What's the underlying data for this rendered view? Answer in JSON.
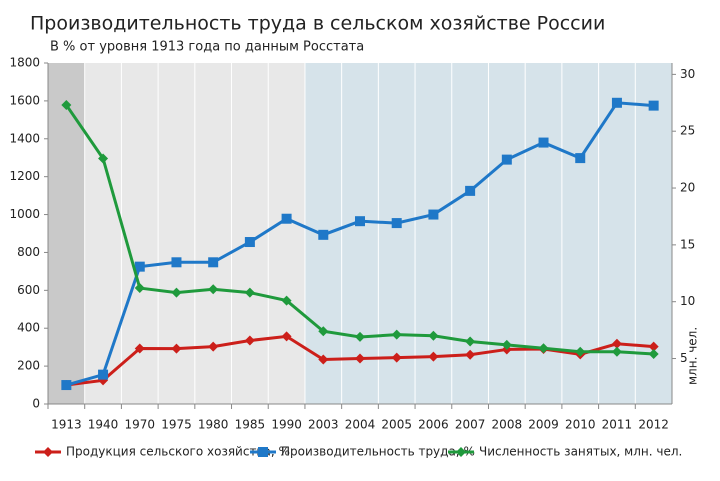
{
  "chart_data": {
    "type": "line",
    "title": "Производительность труда в сельском хозяйстве России",
    "subtitle": "В % от уровня 1913 года по данным Росстата",
    "y2label": "млн. чел.",
    "categories": [
      "1913",
      "1940",
      "1970",
      "1975",
      "1980",
      "1985",
      "1990",
      "2003",
      "2004",
      "2005",
      "2006",
      "2007",
      "2008",
      "2009",
      "2010",
      "2011",
      "2012"
    ],
    "ylim": [
      0,
      1800
    ],
    "yticks": [
      0,
      200,
      400,
      600,
      800,
      1000,
      1200,
      1400,
      1600,
      1800
    ],
    "y2lim": [
      1,
      31
    ],
    "y2ticks": [
      5,
      10,
      15,
      20,
      25,
      30
    ],
    "series": [
      {
        "name": "Продукция сельского хозяйства, %",
        "color": "#cc1f1a",
        "marker": "diamond",
        "values": [
          100,
          125,
          293,
          292,
          303,
          335,
          357,
          235,
          240,
          245,
          250,
          260,
          288,
          290,
          262,
          318,
          303
        ]
      },
      {
        "name": "Производительность труда, %",
        "color": "#1f78c8",
        "marker": "square",
        "values": [
          100,
          155,
          725,
          748,
          748,
          855,
          978,
          893,
          965,
          955,
          1000,
          1125,
          1290,
          1380,
          1298,
          1590,
          1575
        ]
      },
      {
        "name": "Численность занятых, млн. чел.",
        "color": "#1f9a3c",
        "marker": "diamond",
        "axis": "y2",
        "values": [
          27.3,
          22.6,
          11.2,
          10.8,
          11.1,
          10.8,
          10.1,
          7.4,
          6.9,
          7.1,
          7.0,
          6.5,
          6.2,
          5.9,
          5.6,
          5.6,
          5.4
        ]
      }
    ]
  }
}
